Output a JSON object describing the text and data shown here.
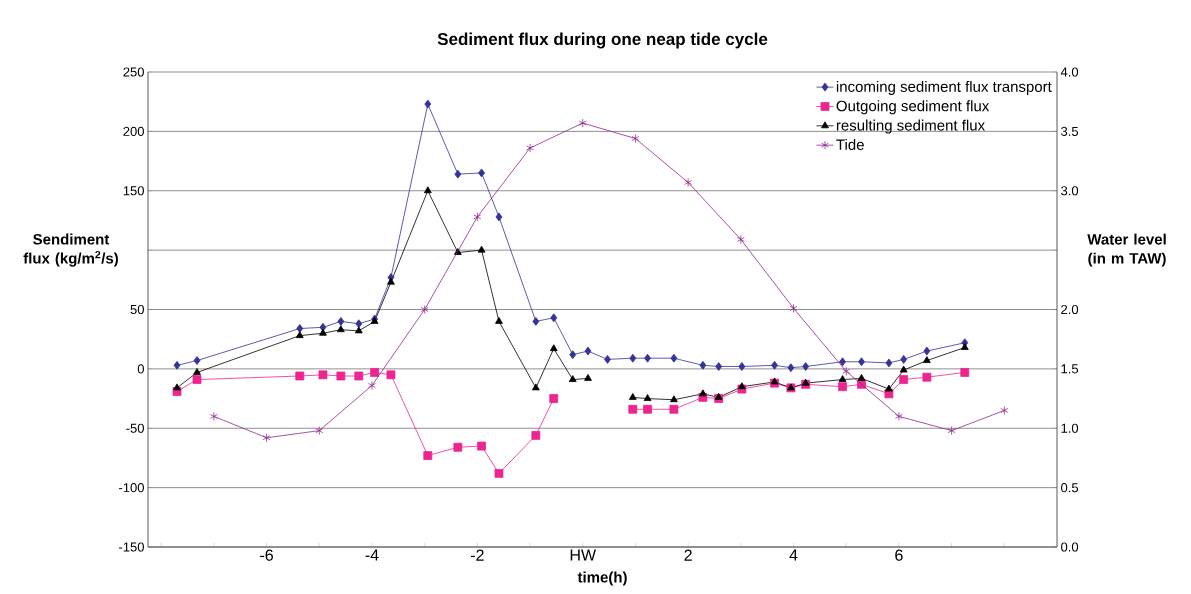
{
  "chart_data": {
    "type": "line",
    "title": "Sediment flux during one neap tide cycle",
    "xlabel": "time(h)",
    "ylabel": "Sendiment flux (kg/m$^{2}$/s)",
    "y2label": "Water level (in m TAW)",
    "x": [
      -7.7,
      -7.32,
      -5.37,
      -4.93,
      -4.59,
      -4.25,
      -3.95,
      -3.64,
      -2.94,
      -2.37,
      -1.92,
      -1.59,
      -0.89,
      -0.55,
      -0.19,
      0.1,
      0.47,
      0.95,
      1.23,
      1.73,
      2.28,
      2.58,
      3.02,
      3.64,
      3.95,
      4.23,
      4.93,
      5.29,
      5.81,
      6.09,
      6.53,
      7.25
    ],
    "series": [
      {
        "name": "incoming sediment flux transport",
        "color": "#333399",
        "marker": "diamond",
        "values": [
          3,
          7,
          34,
          35,
          40,
          38,
          42,
          77,
          223,
          164,
          165,
          128,
          40,
          43,
          12,
          15,
          8,
          9,
          9,
          9,
          3,
          2,
          2,
          3,
          1,
          2,
          6,
          6,
          5,
          8,
          15,
          22
        ]
      },
      {
        "name": "Outgoing sediment flux",
        "color": "#ec268f",
        "marker": "square",
        "values": [
          -19,
          -9,
          -6,
          -5,
          -6,
          -6,
          -3,
          -5,
          -73,
          -66,
          -65,
          -88,
          -56,
          -25,
          null,
          null,
          null,
          -34,
          -34,
          -34,
          -24,
          -25,
          -17,
          -12,
          -16,
          -13,
          -15,
          -13,
          -21,
          -9,
          -7,
          -3
        ]
      },
      {
        "name": "resulting sediment flux",
        "color": "#000000",
        "marker": "triangle",
        "values": [
          -16,
          -3,
          28,
          30,
          33,
          32,
          40,
          73,
          150,
          98,
          100,
          40,
          -16,
          17,
          -9,
          -8,
          null,
          -24,
          -25,
          -26,
          -21,
          -24,
          -15,
          -11,
          -16,
          -12,
          -9,
          -8,
          -17,
          -1,
          7,
          18
        ]
      },
      {
        "name": "Tide",
        "color": "#92278f",
        "marker": "cross",
        "axis": "y2",
        "x": [
          -7,
          -6,
          -5,
          -4,
          -3,
          -2,
          -1,
          0,
          1,
          2,
          3,
          4,
          5,
          6,
          7,
          8
        ],
        "values": [
          1.1,
          0.92,
          0.98,
          1.36,
          2.0,
          2.78,
          3.36,
          3.57,
          3.44,
          3.07,
          2.59,
          2.01,
          1.48,
          1.1,
          0.98,
          1.15
        ]
      }
    ],
    "xlim": [
      -8.25,
      9.0
    ],
    "xticks": [
      {
        "value": -8,
        "label": null
      },
      {
        "value": -7,
        "label": null
      },
      -6,
      {
        "value": -5,
        "label": null
      },
      -4,
      {
        "value": -3,
        "label": null
      },
      -2,
      {
        "value": -1,
        "label": null
      },
      {
        "value": 0,
        "label": "HW"
      },
      {
        "value": 1,
        "label": null
      },
      2,
      {
        "value": 3,
        "label": null
      },
      4,
      {
        "value": 5,
        "label": null
      },
      6,
      {
        "value": 7,
        "label": null
      },
      {
        "value": 8,
        "label": null
      }
    ],
    "ylim": [
      -150,
      250
    ],
    "yticks": [
      -150,
      -100,
      -50,
      0,
      50,
      {
        "value": 100,
        "label": null
      },
      150,
      200,
      250
    ],
    "y2lim": [
      0,
      4
    ],
    "y2ticks": [
      {
        "value": 0,
        "label": "0.0"
      },
      0.5,
      {
        "value": 1,
        "label": "1.0"
      },
      1.5,
      {
        "value": 2,
        "label": "2.0"
      },
      {
        "value": 2.5,
        "label": null
      },
      {
        "value": 3,
        "label": "3.0"
      },
      3.5,
      {
        "value": 4,
        "label": "4.0"
      }
    ],
    "grid": "y",
    "legend": "top right"
  }
}
